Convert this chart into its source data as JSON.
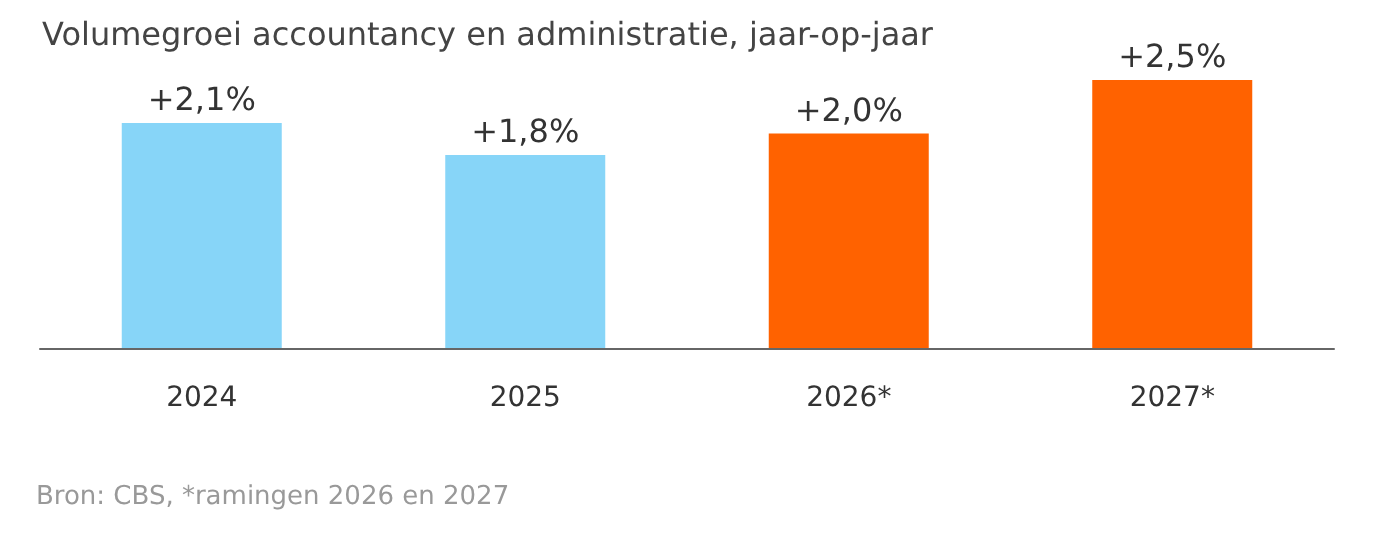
{
  "chart_data": {
    "type": "bar",
    "title": "Volumegroei accountancy en administratie, jaar-op-jaar",
    "categories": [
      "2024",
      "2025",
      "2026*",
      "2027*"
    ],
    "values": [
      2.1,
      1.8,
      2.0,
      2.5
    ],
    "colors": [
      "#87d5f8",
      "#87d5f8",
      "#ff6200",
      "#ff6200"
    ],
    "value_labels": [
      "+2,1%",
      "+1,8%",
      "+2,0%",
      "+2,5%"
    ],
    "annotations": [
      "Bron: CBS, *ramingen 2026 en 2027"
    ]
  }
}
